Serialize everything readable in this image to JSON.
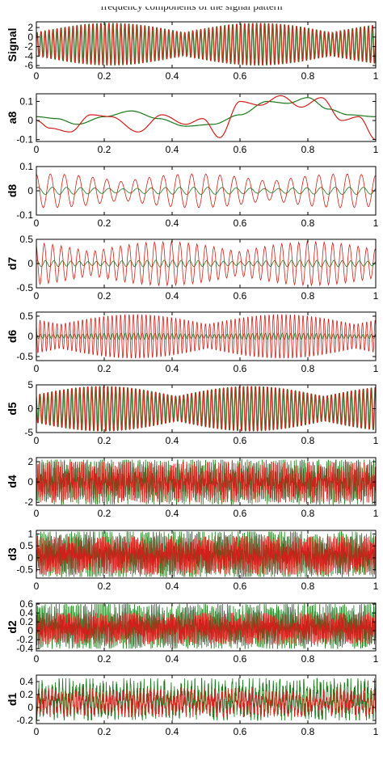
{
  "header_text": "frequency components of the signal pattern",
  "colors": {
    "series_a": "#1a7a1a",
    "series_b": "#d0201a",
    "axis": "#000000"
  },
  "x_ticks": [
    "0",
    "0.2",
    "0.4",
    "0.6",
    "0.8",
    "1"
  ],
  "chart_data": [
    {
      "type": "line",
      "ylabel": "Signal",
      "xlim": [
        0,
        1
      ],
      "ylim": [
        -6.5,
        3.2
      ],
      "y_ticks": [
        "2",
        "0",
        "-2",
        "-4",
        "-6"
      ],
      "y_tick_values": [
        2,
        0,
        -2,
        -4,
        -6
      ],
      "grid": false,
      "series": [
        {
          "color": "#1a7a1a",
          "amplitude_range": [
            -6,
            3
          ],
          "osc_per_unit": 85
        },
        {
          "color": "#d0201a",
          "amplitude_range": [
            -6,
            3
          ],
          "osc_per_unit": 85
        }
      ]
    },
    {
      "type": "line",
      "ylabel": "a8",
      "xlim": [
        0,
        1
      ],
      "ylim": [
        -0.11,
        0.14
      ],
      "y_ticks": [
        "0.1",
        "0",
        "-0.1"
      ],
      "y_tick_values": [
        0.1,
        0,
        -0.1
      ],
      "grid": false,
      "series": [
        {
          "color": "#1a7a1a",
          "x": [
            0,
            0.06,
            0.12,
            0.2,
            0.28,
            0.36,
            0.44,
            0.52,
            0.6,
            0.68,
            0.74,
            0.8,
            0.86,
            0.92,
            1
          ],
          "y": [
            0.02,
            0.01,
            -0.02,
            0.02,
            0.05,
            0.01,
            -0.03,
            -0.02,
            0.03,
            0.1,
            0.09,
            0.12,
            0.06,
            0.03,
            0.02
          ]
        },
        {
          "color": "#d0201a",
          "x": [
            0,
            0.04,
            0.1,
            0.16,
            0.22,
            0.3,
            0.37,
            0.44,
            0.49,
            0.54,
            0.6,
            0.66,
            0.72,
            0.78,
            0.84,
            0.9,
            0.95,
            1
          ],
          "y": [
            0.0,
            -0.04,
            -0.06,
            0.03,
            0.02,
            -0.06,
            0.03,
            -0.02,
            0.01,
            -0.09,
            0.1,
            0.08,
            0.13,
            0.07,
            0.12,
            0.0,
            0.02,
            -0.1
          ]
        }
      ]
    },
    {
      "type": "line",
      "ylabel": "d8",
      "xlim": [
        0,
        1
      ],
      "ylim": [
        -0.1,
        0.1
      ],
      "y_ticks": [
        "0.1",
        "0",
        "-0.1"
      ],
      "y_tick_values": [
        0.1,
        0,
        -0.1
      ],
      "grid": false,
      "series": [
        {
          "color": "#1a7a1a",
          "amplitude_range": [
            -0.015,
            0.015
          ],
          "osc_per_unit": 24
        },
        {
          "color": "#d0201a",
          "amplitude_range": [
            -0.07,
            0.07
          ],
          "osc_per_unit": 24
        }
      ]
    },
    {
      "type": "line",
      "ylabel": "d7",
      "xlim": [
        0,
        1
      ],
      "ylim": [
        -0.5,
        0.5
      ],
      "y_ticks": [
        "0.5",
        "0",
        "-0.5"
      ],
      "y_tick_values": [
        0.5,
        0,
        -0.5
      ],
      "grid": false,
      "series": [
        {
          "color": "#1a7a1a",
          "amplitude_range": [
            -0.07,
            0.07
          ],
          "osc_per_unit": 40
        },
        {
          "color": "#d0201a",
          "amplitude_range": [
            -0.45,
            0.45
          ],
          "osc_per_unit": 40
        }
      ]
    },
    {
      "type": "line",
      "ylabel": "d6",
      "xlim": [
        0,
        1
      ],
      "ylim": [
        -0.6,
        0.6
      ],
      "y_ticks": [
        "0.5",
        "0",
        "-0.5"
      ],
      "y_tick_values": [
        0.5,
        0,
        -0.5
      ],
      "grid": false,
      "series": [
        {
          "color": "#1a7a1a",
          "amplitude_range": [
            -0.08,
            0.08
          ],
          "osc_per_unit": 80
        },
        {
          "color": "#d0201a",
          "amplitude_range": [
            -0.55,
            0.55
          ],
          "osc_per_unit": 80
        }
      ]
    },
    {
      "type": "line",
      "ylabel": "d5",
      "xlim": [
        0,
        1
      ],
      "ylim": [
        -5,
        5
      ],
      "y_ticks": [
        "5",
        "0",
        "-5"
      ],
      "y_tick_values": [
        5,
        0,
        -5
      ],
      "grid": false,
      "series": [
        {
          "color": "#1a7a1a",
          "amplitude_range": [
            -4.8,
            4.8
          ],
          "osc_per_unit": 85
        },
        {
          "color": "#d0201a",
          "amplitude_range": [
            -4.8,
            4.8
          ],
          "osc_per_unit": 85
        }
      ]
    },
    {
      "type": "line",
      "ylabel": "d4",
      "xlim": [
        0,
        1
      ],
      "ylim": [
        -2.3,
        2.4
      ],
      "y_ticks": [
        "2",
        "0",
        "-2"
      ],
      "y_tick_values": [
        2,
        0,
        -2
      ],
      "grid": false,
      "series": [
        {
          "color": "#1a7a1a",
          "amplitude_range": [
            -2.2,
            2.2
          ],
          "osc_per_unit": 180
        },
        {
          "color": "#d0201a",
          "amplitude_range": [
            -2.0,
            2.0
          ],
          "osc_per_unit": 180
        }
      ]
    },
    {
      "type": "line",
      "ylabel": "d3",
      "xlim": [
        0,
        1
      ],
      "ylim": [
        -0.85,
        1.15
      ],
      "y_ticks": [
        "1",
        "0.5",
        "0",
        "-0.5"
      ],
      "y_tick_values": [
        1,
        0.5,
        0,
        -0.5
      ],
      "grid": false,
      "series": [
        {
          "color": "#1a7a1a",
          "amplitude_range": [
            -0.8,
            1.1
          ],
          "osc_per_unit": 220
        },
        {
          "color": "#d0201a",
          "amplitude_range": [
            -0.7,
            0.9
          ],
          "osc_per_unit": 220
        }
      ]
    },
    {
      "type": "line",
      "ylabel": "d2",
      "xlim": [
        0,
        1
      ],
      "ylim": [
        -0.45,
        0.62
      ],
      "y_ticks": [
        "0.6",
        "0.4",
        "0.2",
        "0",
        "-0.2",
        "-0.4"
      ],
      "y_tick_values": [
        0.6,
        0.4,
        0.2,
        0,
        -0.2,
        -0.4
      ],
      "grid": false,
      "series": [
        {
          "color": "#1a7a1a",
          "amplitude_range": [
            -0.4,
            0.6
          ],
          "osc_per_unit": 220
        },
        {
          "color": "#d0201a",
          "amplitude_range": [
            -0.3,
            0.4
          ],
          "osc_per_unit": 220
        }
      ]
    },
    {
      "type": "line",
      "ylabel": "d1",
      "xlim": [
        0,
        1
      ],
      "ylim": [
        -0.25,
        0.5
      ],
      "y_ticks": [
        "0.4",
        "0.2",
        "0",
        "-0.2"
      ],
      "y_tick_values": [
        0.4,
        0.2,
        0,
        -0.2
      ],
      "grid": false,
      "series": [
        {
          "color": "#1a7a1a",
          "amplitude_range": [
            -0.2,
            0.45
          ],
          "osc_per_unit": 100
        },
        {
          "color": "#d0201a",
          "amplitude_range": [
            -0.15,
            0.3
          ],
          "osc_per_unit": 100
        }
      ]
    }
  ]
}
